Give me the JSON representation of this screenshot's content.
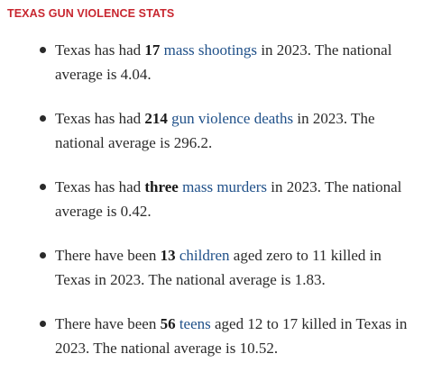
{
  "colors": {
    "heading": "#c8262f",
    "link": "#1f5089",
    "text": "#2a2a2a"
  },
  "section": {
    "heading": "TEXAS GUN VIOLENCE STATS"
  },
  "stats": [
    {
      "prefix": "Texas has had ",
      "number": "17",
      "link": "mass shootings",
      "suffix": " in 2023. The national average is 4.04."
    },
    {
      "prefix": "Texas has had ",
      "number": "214",
      "link": "gun violence deaths",
      "suffix": " in 2023. The national average is 296.2."
    },
    {
      "prefix": "Texas has had ",
      "number": "three",
      "link": "mass murders",
      "suffix": " in 2023. The national average is 0.42."
    },
    {
      "prefix": "There have been ",
      "number": "13",
      "link": "children",
      "suffix": " aged zero to 11 killed in Texas in 2023. The national average is 1.83."
    },
    {
      "prefix": "There have been ",
      "number": "56",
      "link": "teens",
      "suffix": " aged 12 to 17 killed in Texas in 2023. The national average is 10.52."
    }
  ]
}
